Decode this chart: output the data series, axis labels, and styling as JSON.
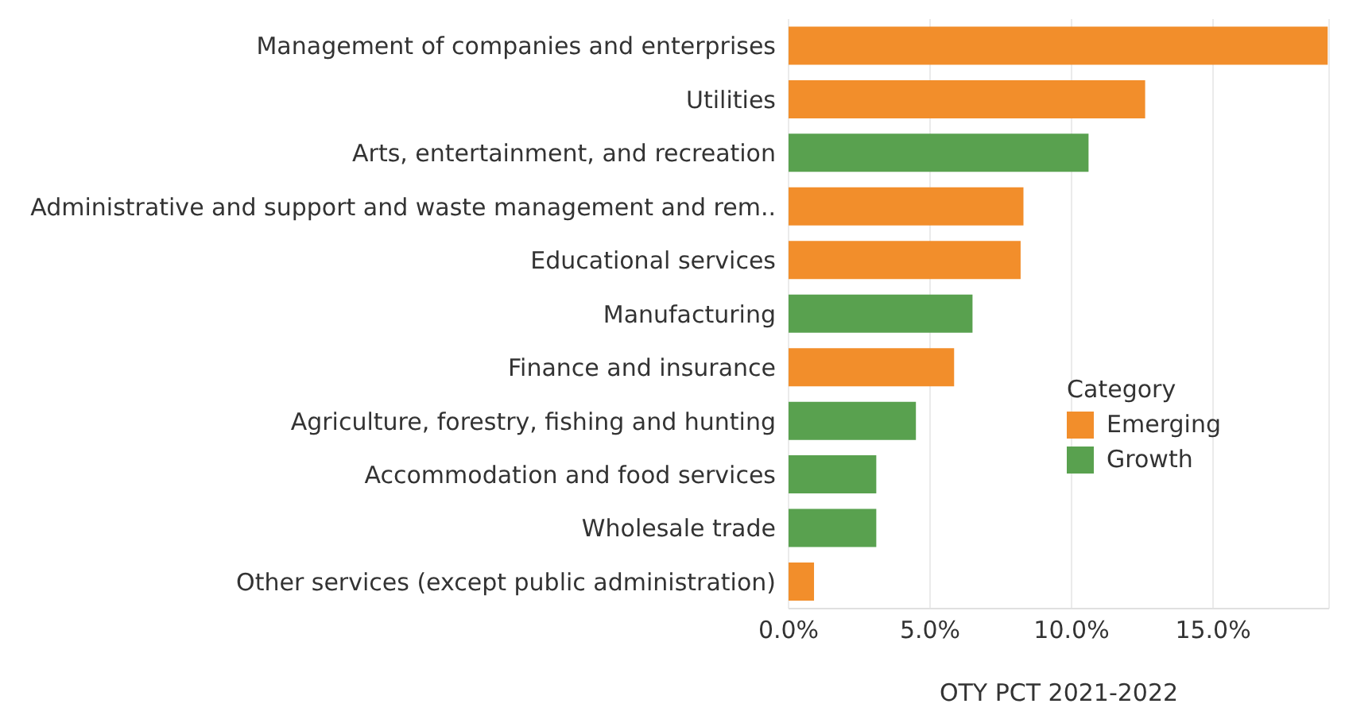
{
  "chart_data": {
    "type": "bar",
    "orientation": "horizontal",
    "stacked": true,
    "xlabel": "OTY PCT 2021-2022",
    "legend_title": "Category",
    "legend": "right",
    "grid": "x",
    "categories": [
      "Management of companies and enterprises",
      "Utilities",
      "Arts, entertainment, and recreation",
      "Administrative and support and waste management and rem..",
      "Educational services",
      "Manufacturing",
      "Finance and insurance",
      "Agriculture, forestry, fishing and hunting",
      "Accommodation and food services",
      "Wholesale trade",
      "Other services (except public administration)"
    ],
    "series": [
      {
        "name": "Emerging",
        "color": "#f28e2b",
        "values": [
          19.05,
          12.6,
          null,
          8.3,
          8.2,
          null,
          5.85,
          null,
          null,
          null,
          0.9
        ]
      },
      {
        "name": "Growth",
        "color": "#59a14f",
        "values": [
          null,
          null,
          10.6,
          null,
          null,
          6.5,
          null,
          4.5,
          3.1,
          3.1,
          null
        ]
      }
    ],
    "xlim": [
      0,
      19.1
    ],
    "xticks": [
      {
        "value": 0,
        "label": "0.0%"
      },
      {
        "value": 5,
        "label": "5.0%"
      },
      {
        "value": 10,
        "label": "10.0%"
      },
      {
        "value": 15,
        "label": "15.0%"
      }
    ]
  }
}
